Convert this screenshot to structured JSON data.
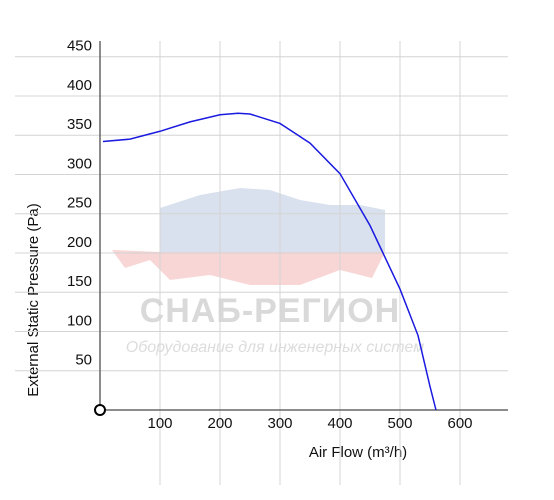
{
  "chart_data": {
    "type": "line",
    "x_label": "Air Flow (m³/h)",
    "y_label": "External Static Pressure (Pa)",
    "watermark": {
      "brand": "СНАБ-РЕГИОН",
      "tagline": "Оборудование для инженерных систем"
    },
    "x": [
      5,
      50,
      100,
      150,
      200,
      230,
      250,
      300,
      350,
      400,
      450,
      500,
      530,
      550,
      560
    ],
    "series": [
      {
        "color": "#1a1ae0",
        "values": [
          342,
          345,
          355,
          367,
          376,
          378,
          377,
          365,
          340,
          301,
          235,
          154,
          95,
          30,
          0
        ]
      }
    ],
    "xlim": [
      0,
      680
    ],
    "ylim": [
      0,
      470
    ],
    "xticks": [
      100,
      200,
      300,
      400,
      500,
      600
    ],
    "yticks": [
      50,
      100,
      150,
      200,
      250,
      300,
      350,
      400,
      450
    ],
    "grid": true
  }
}
